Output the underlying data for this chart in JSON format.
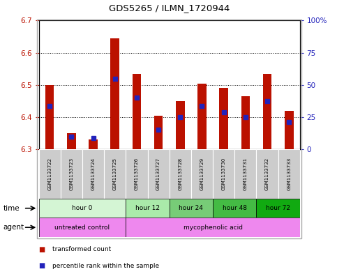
{
  "title": "GDS5265 / ILMN_1720944",
  "samples": [
    "GSM1133722",
    "GSM1133723",
    "GSM1133724",
    "GSM1133725",
    "GSM1133726",
    "GSM1133727",
    "GSM1133728",
    "GSM1133729",
    "GSM1133730",
    "GSM1133731",
    "GSM1133732",
    "GSM1133733"
  ],
  "bar_bottom": 6.3,
  "transformed_counts": [
    6.5,
    6.35,
    6.33,
    6.645,
    6.535,
    6.405,
    6.45,
    6.505,
    6.49,
    6.465,
    6.535,
    6.42
  ],
  "percentile_values": [
    6.435,
    6.34,
    6.335,
    6.52,
    6.46,
    6.36,
    6.4,
    6.435,
    6.415,
    6.4,
    6.45,
    6.385
  ],
  "ylim_left": [
    6.3,
    6.7
  ],
  "ylim_right": [
    0,
    100
  ],
  "yticks_left": [
    6.3,
    6.4,
    6.5,
    6.6,
    6.7
  ],
  "yticks_right": [
    0,
    25,
    50,
    75,
    100
  ],
  "ytick_labels_right": [
    "0",
    "25",
    "50",
    "75",
    "100%"
  ],
  "bar_color": "#bb1100",
  "percentile_color": "#2222bb",
  "left_tick_color": "#bb1100",
  "right_tick_color": "#2222bb",
  "time_groups": [
    {
      "label": "hour 0",
      "start": 0,
      "end": 4,
      "color": "#d4f5d4"
    },
    {
      "label": "hour 12",
      "start": 4,
      "end": 6,
      "color": "#99ee99"
    },
    {
      "label": "hour 24",
      "start": 6,
      "end": 8,
      "color": "#66cc66"
    },
    {
      "label": "hour 48",
      "start": 8,
      "end": 10,
      "color": "#44bb44"
    },
    {
      "label": "hour 72",
      "start": 10,
      "end": 12,
      "color": "#22aa22"
    }
  ],
  "agent_groups": [
    {
      "label": "untreated control",
      "start": 0,
      "end": 4,
      "color": "#ee88ee"
    },
    {
      "label": "mycophenolic acid",
      "start": 4,
      "end": 12,
      "color": "#ee88ee"
    }
  ],
  "sample_bg_color": "#cccccc",
  "outer_border_color": "#888888"
}
